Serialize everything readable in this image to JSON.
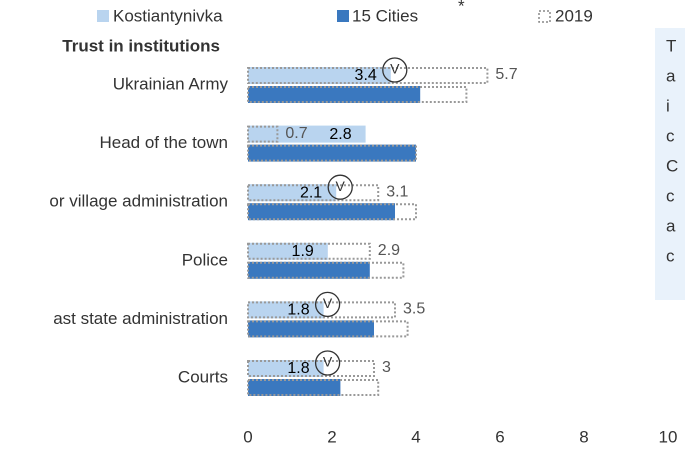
{
  "chart_data": {
    "type": "hbar",
    "title": "Trust in institutions",
    "categories": [
      "Ukrainian Army",
      "Head of the town",
      "or village administration",
      "Police",
      "ast state administration",
      "Courts"
    ],
    "series": [
      {
        "name": "Kostiantynivka",
        "color": "#b9d4ef",
        "values": [
          3.4,
          2.8,
          2.1,
          1.9,
          1.8,
          1.8
        ],
        "values_2019": [
          5.7,
          0.7,
          3.1,
          2.9,
          3.5,
          3.0
        ]
      },
      {
        "name": "15 Cities",
        "name_note": "*",
        "color": "#3a78bf",
        "values": [
          4.1,
          4.0,
          3.5,
          2.9,
          3.0,
          2.2
        ],
        "values_2019": [
          5.2,
          4.0,
          4.0,
          3.7,
          3.8,
          3.1
        ]
      }
    ],
    "legend_2019": "2019",
    "significant": [
      true,
      false,
      true,
      false,
      true,
      true
    ],
    "marker_label": "V",
    "xlim": [
      0,
      10
    ],
    "xticks": [
      0,
      2,
      4,
      6,
      8,
      10
    ],
    "side_text": [
      "T",
      "a",
      "i",
      "c",
      "C",
      "c",
      "a",
      "c"
    ]
  }
}
